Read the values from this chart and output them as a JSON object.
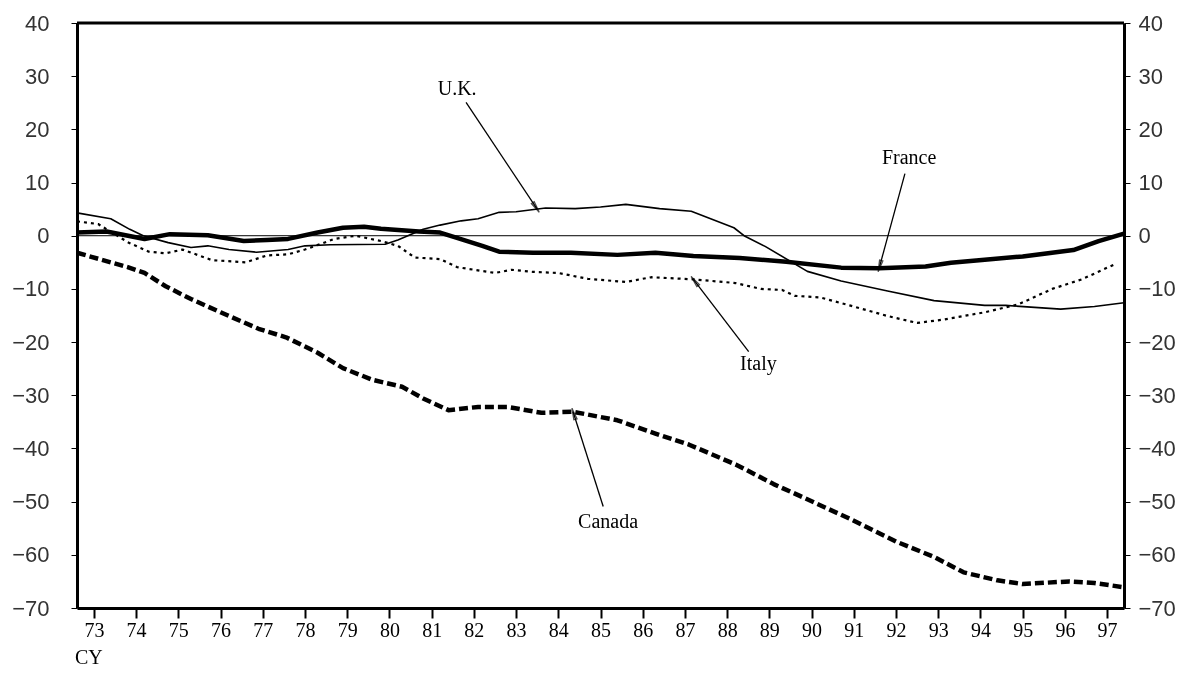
{
  "chart_data": {
    "type": "line",
    "xlabel": "CY",
    "xlim": [
      73.1,
      97.9
    ],
    "xticks": [
      {
        "value": 73.5,
        "label": "73"
      },
      {
        "value": 74.5,
        "label": "74"
      },
      {
        "value": 75.5,
        "label": "75"
      },
      {
        "value": 76.5,
        "label": "76"
      },
      {
        "value": 77.5,
        "label": "77"
      },
      {
        "value": 78.5,
        "label": "78"
      },
      {
        "value": 79.5,
        "label": "79"
      },
      {
        "value": 80.5,
        "label": "80"
      },
      {
        "value": 81.5,
        "label": "81"
      },
      {
        "value": 82.5,
        "label": "82"
      },
      {
        "value": 83.5,
        "label": "83"
      },
      {
        "value": 84.5,
        "label": "84"
      },
      {
        "value": 85.5,
        "label": "85"
      },
      {
        "value": 86.5,
        "label": "86"
      },
      {
        "value": 87.5,
        "label": "87"
      },
      {
        "value": 88.5,
        "label": "88"
      },
      {
        "value": 89.5,
        "label": "89"
      },
      {
        "value": 90.5,
        "label": "90"
      },
      {
        "value": 91.5,
        "label": "91"
      },
      {
        "value": 92.5,
        "label": "92"
      },
      {
        "value": 93.5,
        "label": "93"
      },
      {
        "value": 94.5,
        "label": "94"
      },
      {
        "value": 95.5,
        "label": "95"
      },
      {
        "value": 96.5,
        "label": "96"
      },
      {
        "value": 97.5,
        "label": "97"
      }
    ],
    "ylim": [
      -70,
      40
    ],
    "yticks": [
      -70,
      -60,
      -50,
      -40,
      -30,
      -20,
      -10,
      0,
      10,
      20,
      30,
      40
    ],
    "y2lim": [
      -70,
      40
    ],
    "y2ticks": [
      -70,
      -60,
      -50,
      -40,
      -30,
      -20,
      -10,
      0,
      10,
      20,
      30,
      40
    ],
    "grid": false,
    "ref_lines": [
      {
        "axis": "y",
        "value": 0,
        "color": "#000000"
      }
    ],
    "series": [
      {
        "color": "#000000",
        "line_style": "solid",
        "x": [
          73.1,
          73.9,
          74.35,
          74.67,
          75.26,
          75.8,
          76.2,
          76.7,
          77.35,
          78.1,
          78.5,
          79.1,
          80.4,
          80.7,
          81.3,
          81.7,
          82.2,
          82.6,
          83.1,
          83.5,
          84.2,
          84.9,
          85.5,
          86.1,
          86.9,
          87.65,
          88.66,
          88.9,
          89.4,
          90.4,
          91.2,
          92.3,
          93.4,
          94.6,
          95.1,
          96.4,
          97.2,
          97.9
        ],
        "values": [
          4.3,
          3.2,
          1.2,
          0,
          -1.3,
          -2.2,
          -1.9,
          -2.6,
          -3.1,
          -2.6,
          -1.9,
          -1.7,
          -1.6,
          -0.8,
          1.2,
          2.0,
          2.8,
          3.2,
          4.4,
          4.5,
          5.2,
          5.1,
          5.4,
          5.9,
          5.1,
          4.6,
          1.5,
          0,
          -2.0,
          -6.7,
          -8.5,
          -10.4,
          -12.2,
          -13.1,
          -13.1,
          -13.8,
          -13.3,
          -12.6
        ]
      },
      {
        "color": "#000000",
        "line_style": "solid",
        "x": [
          73.1,
          73.8,
          74.7,
          75.3,
          76.2,
          77.05,
          77.6,
          78.1,
          78.8,
          79.4,
          79.9,
          80.3,
          81.2,
          81.7,
          82.1,
          82.7,
          83.1,
          83.9,
          84.8,
          85.9,
          86.8,
          87.7,
          88.8,
          89.9,
          91.2,
          92.1,
          93.2,
          93.8,
          94.6,
          95.5,
          96.7,
          97.3,
          97.9
        ],
        "values": [
          0.6,
          0.8,
          -0.6,
          0.3,
          0.1,
          -1.0,
          -0.8,
          -0.6,
          0.6,
          1.5,
          1.7,
          1.3,
          0.8,
          0.6,
          -0.4,
          -1.9,
          -3.0,
          -3.2,
          -3.2,
          -3.6,
          -3.2,
          -3.8,
          -4.2,
          -4.9,
          -6.0,
          -6.1,
          -5.8,
          -5.1,
          -4.5,
          -3.9,
          -2.7,
          -1.0,
          0.4
        ]
      },
      {
        "color": "#000000",
        "line_style": "dotted",
        "x": [
          73.1,
          73.6,
          74.3,
          74.8,
          75.2,
          75.6,
          76.3,
          77.1,
          77.6,
          78.1,
          78.5,
          79.2,
          79.7,
          80.3,
          80.7,
          81.1,
          81.7,
          82.1,
          83.0,
          83.4,
          83.9,
          84.5,
          85.2,
          86.1,
          86.7,
          87.7,
          88.7,
          89.3,
          89.8,
          90.1,
          90.7,
          91.4,
          92.3,
          93.0,
          93.6,
          94.6,
          95.4,
          96.2,
          96.9,
          97.7
        ],
        "values": [
          2.7,
          2.2,
          -1.2,
          -3.0,
          -3.3,
          -2.6,
          -4.6,
          -5.0,
          -3.7,
          -3.5,
          -2.6,
          -0.6,
          0,
          -1.0,
          -1.9,
          -4.1,
          -4.4,
          -5.9,
          -7.0,
          -6.4,
          -6.8,
          -7.0,
          -8.1,
          -8.7,
          -7.8,
          -8.2,
          -8.9,
          -10.0,
          -10.2,
          -11.3,
          -11.6,
          -13.1,
          -15.1,
          -16.4,
          -15.8,
          -14.4,
          -12.9,
          -10.0,
          -8.2,
          -5.3
        ]
      },
      {
        "color": "#000000",
        "line_style": "dashed",
        "x": [
          73.1,
          74.3,
          74.7,
          75.2,
          75.8,
          76.5,
          77.4,
          78.05,
          78.8,
          79.4,
          80.1,
          80.8,
          81.3,
          81.9,
          82.6,
          83.3,
          84.1,
          84.85,
          85.9,
          86.8,
          87.6,
          88.7,
          89.6,
          90.3,
          91.4,
          92.5,
          93.4,
          94.1,
          94.9,
          95.5,
          96.6,
          97.2,
          97.9
        ],
        "values": [
          -3.2,
          -5.9,
          -7.0,
          -9.5,
          -11.9,
          -14.4,
          -17.5,
          -19.1,
          -22.0,
          -24.9,
          -27.1,
          -28.4,
          -30.6,
          -32.8,
          -32.2,
          -32.2,
          -33.3,
          -33.1,
          -34.7,
          -37.2,
          -39.3,
          -43.0,
          -46.7,
          -49.2,
          -53.2,
          -57.5,
          -60.4,
          -63.3,
          -64.8,
          -65.5,
          -65.0,
          -65.3,
          -66.1
        ]
      }
    ],
    "annotations": [
      {
        "text": "U.K.",
        "x": 84.0,
        "y": 5.0
      },
      {
        "text": "France",
        "x": 92.1,
        "y": -6.1
      },
      {
        "text": "Italy",
        "x": 87.7,
        "y": -8.2
      },
      {
        "text": "Canada",
        "x": 84.85,
        "y": -33.1
      }
    ]
  }
}
